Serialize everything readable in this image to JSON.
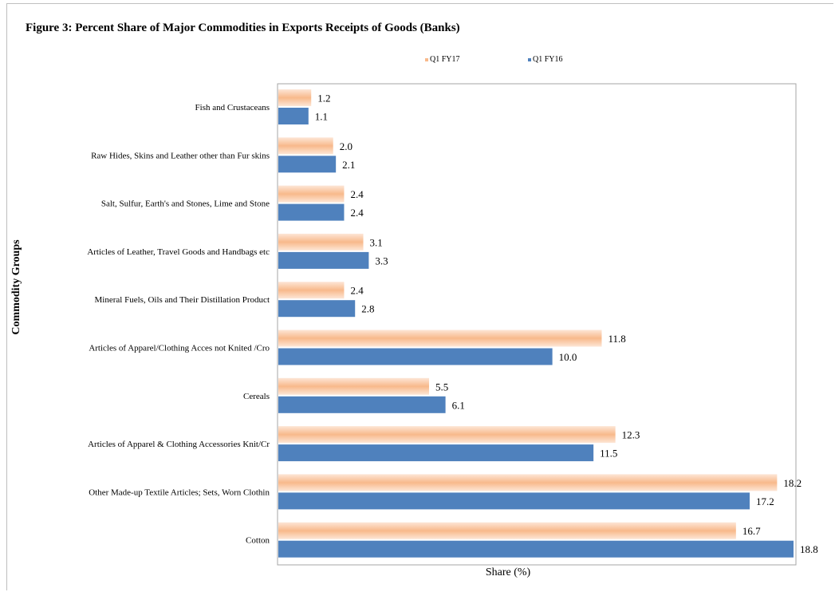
{
  "colors": {
    "q1fy17_bar": "#f8b98b",
    "q1fy17_glow": "#fde6d6",
    "q1fy16_bar": "#4f81bd",
    "plot_border": "#a6a6a6"
  },
  "chart_data": {
    "type": "bar",
    "orientation": "horizontal",
    "title": "Figure 3: Percent Share of Major Commodities in Exports Receipts of Goods  (Banks)",
    "xlabel": "Share (%)",
    "ylabel": "Commodity Groups",
    "xlim": [
      0,
      19
    ],
    "grid": false,
    "legend": "top-center",
    "categories": [
      "Fish and Crustaceans",
      "Raw Hides, Skins and Leather other than Fur skins",
      "Salt, Sulfur, Earth's and Stones, Lime and Stone",
      "Articles of Leather, Travel Goods and Handbags etc",
      "Mineral Fuels, Oils and Their Distillation Product",
      "Articles of Apparel/Clothing Acces not Knited /Cro",
      "Cereals",
      "Articles of Apparel & Clothing Accessories Knit/Cr",
      "Other Made-up Textile Articles; Sets, Worn Clothin",
      "Cotton"
    ],
    "series": [
      {
        "name": "Q1 FY17",
        "values": [
          1.2,
          2.0,
          2.4,
          3.1,
          2.4,
          11.8,
          5.5,
          12.3,
          18.2,
          16.7
        ],
        "labels": [
          "1.2",
          "2.0",
          "2.4",
          "3.1",
          "2.4",
          "11.8",
          "5.5",
          "12.3",
          "18.2",
          "16.7"
        ]
      },
      {
        "name": "Q1 FY16",
        "values": [
          1.1,
          2.1,
          2.4,
          3.3,
          2.8,
          10.0,
          6.1,
          11.5,
          17.2,
          18.8
        ],
        "labels": [
          "1.1",
          "2.1",
          "2.4",
          "3.3",
          "2.8",
          "10.0",
          "6.1",
          "11.5",
          "17.2",
          "18.8"
        ]
      }
    ]
  }
}
